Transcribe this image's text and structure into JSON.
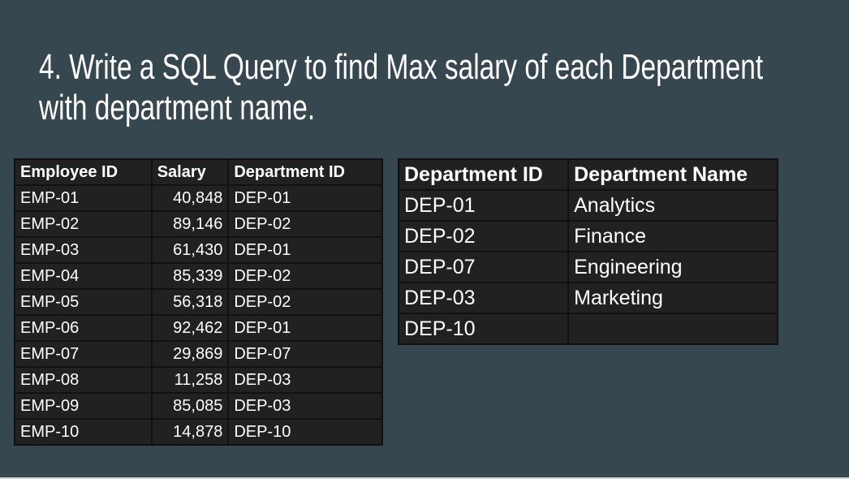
{
  "title": {
    "line1": "4. Write a SQL Query to find Max salary of each Department",
    "line2": "with department name."
  },
  "employees": {
    "headers": [
      "Employee ID",
      "Salary",
      "Department ID"
    ],
    "rows": [
      [
        "EMP-01",
        "40,848",
        "DEP-01"
      ],
      [
        "EMP-02",
        "89,146",
        "DEP-02"
      ],
      [
        "EMP-03",
        "61,430",
        "DEP-01"
      ],
      [
        "EMP-04",
        "85,339",
        "DEP-02"
      ],
      [
        "EMP-05",
        "56,318",
        "DEP-02"
      ],
      [
        "EMP-06",
        "92,462",
        "DEP-01"
      ],
      [
        "EMP-07",
        "29,869",
        "DEP-07"
      ],
      [
        "EMP-08",
        "11,258",
        "DEP-03"
      ],
      [
        "EMP-09",
        "85,085",
        "DEP-03"
      ],
      [
        "EMP-10",
        "14,878",
        "DEP-10"
      ]
    ]
  },
  "departments": {
    "headers": [
      "Department ID",
      "Department Name"
    ],
    "rows": [
      [
        "DEP-01",
        "Analytics"
      ],
      [
        "DEP-02",
        "Finance"
      ],
      [
        "DEP-07",
        "Engineering"
      ],
      [
        "DEP-03",
        "Marketing"
      ],
      [
        "DEP-10",
        null
      ]
    ]
  }
}
